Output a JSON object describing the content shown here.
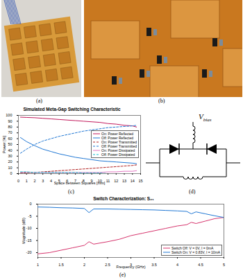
{
  "chart_data": [
    {
      "type": "line",
      "title": "Simulated Meta-Gap Switching Characteristic",
      "x_label": "Space between Squares [mm]",
      "y_label": "Power [%]",
      "x": [
        0.25,
        1,
        2,
        3,
        4,
        5,
        6,
        7,
        8,
        9,
        10,
        11,
        12,
        13,
        14,
        14.5
      ],
      "xlim": [
        0,
        15
      ],
      "xticks": [
        0,
        1,
        2,
        3,
        4,
        5,
        6,
        7,
        8,
        9,
        10,
        11,
        12,
        13,
        14,
        15
      ],
      "ylim": [
        0,
        100
      ],
      "yticks": [
        0,
        10,
        20,
        30,
        40,
        50,
        60,
        70,
        80,
        90,
        100
      ],
      "grid": false,
      "legend": "right",
      "series": [
        {
          "name": "On: Power Reflected",
          "color": "#c2185b",
          "line_style": "solid",
          "values": [
            97,
            96.5,
            96,
            95,
            94,
            93,
            92,
            91,
            90,
            89,
            88,
            86,
            85,
            83,
            82,
            80
          ]
        },
        {
          "name": "Off: Power Reflected",
          "color": "#1f77d4",
          "line_style": "solid",
          "values": [
            62,
            55,
            48,
            42,
            38,
            34,
            31,
            28,
            26,
            24,
            22,
            21,
            20,
            19,
            18,
            17
          ]
        },
        {
          "name": "On: Power Transmitted",
          "color": "#b22222",
          "line_style": "dashed",
          "values": [
            1,
            1.5,
            2,
            3,
            4,
            5,
            6,
            7,
            8,
            9,
            10,
            11,
            12,
            13,
            14,
            15
          ]
        },
        {
          "name": "Off: Power Transmitted",
          "color": "#1f77d4",
          "line_style": "dashed",
          "values": [
            35,
            42,
            50,
            56,
            60,
            64,
            67,
            70,
            73,
            75,
            77,
            79,
            80,
            81,
            82,
            83
          ]
        },
        {
          "name": "On: Power Dissipated",
          "color": "#e377c2",
          "line_style": "solid",
          "values": [
            2,
            2.5,
            2,
            2,
            2,
            2,
            2,
            2,
            2,
            2,
            2,
            3,
            3,
            4,
            4,
            5
          ]
        },
        {
          "name": "Off: Power Dissipated",
          "color": "#17becf",
          "line_style": "dashed",
          "values": [
            3,
            3,
            2,
            2,
            2,
            2,
            2,
            2,
            1,
            1,
            1,
            0,
            0,
            0,
            0,
            0
          ]
        }
      ]
    },
    {
      "type": "line",
      "title": "Switch Characterization: S₂₁",
      "x_label": "Frequency (GHz)",
      "y_label": "Magnitude (dB)",
      "x": [
        1,
        1.25,
        1.5,
        1.75,
        2,
        2.1,
        2.2,
        2.5,
        2.75,
        3,
        3.25,
        3.5,
        3.75,
        4,
        4.2,
        4.3,
        4.4,
        4.6,
        4.8,
        5
      ],
      "xlim": [
        1,
        5
      ],
      "xticks": [
        1,
        1.5,
        2,
        2.5,
        3,
        3.5,
        4,
        4.5,
        5
      ],
      "ylim": [
        -22,
        0
      ],
      "yticks": [
        -20,
        -15,
        -10,
        -5,
        0
      ],
      "grid": false,
      "legend": "lower right",
      "series": [
        {
          "name": "Switch Off: V = 0V, I = 0mA",
          "color": "#d6336c",
          "line_style": "solid",
          "values": [
            -20.5,
            -20,
            -19,
            -18,
            -17,
            -15.5,
            -16.5,
            -15.5,
            -14.5,
            -13,
            -12,
            -11,
            -10,
            -9,
            -8.5,
            -7.5,
            -8,
            -7,
            -6,
            -5.5
          ]
        },
        {
          "name": "Switch On: V = 0.83V, I = 10mA",
          "color": "#1f77d4",
          "line_style": "solid",
          "values": [
            -1.2,
            -1.3,
            -1.5,
            -1.6,
            -1.8,
            -3.5,
            -2,
            -2,
            -2.1,
            -2.2,
            -2.3,
            -2.4,
            -2.6,
            -2.8,
            -3,
            -4,
            -3.2,
            -4,
            -4.8,
            -5.5
          ]
        }
      ]
    }
  ],
  "figure": {
    "panel_labels": [
      "(a)",
      "(b)",
      "(c)",
      "(d)",
      "(e)"
    ],
    "diagram": {
      "label": "V",
      "label_subscript": "bias"
    }
  }
}
